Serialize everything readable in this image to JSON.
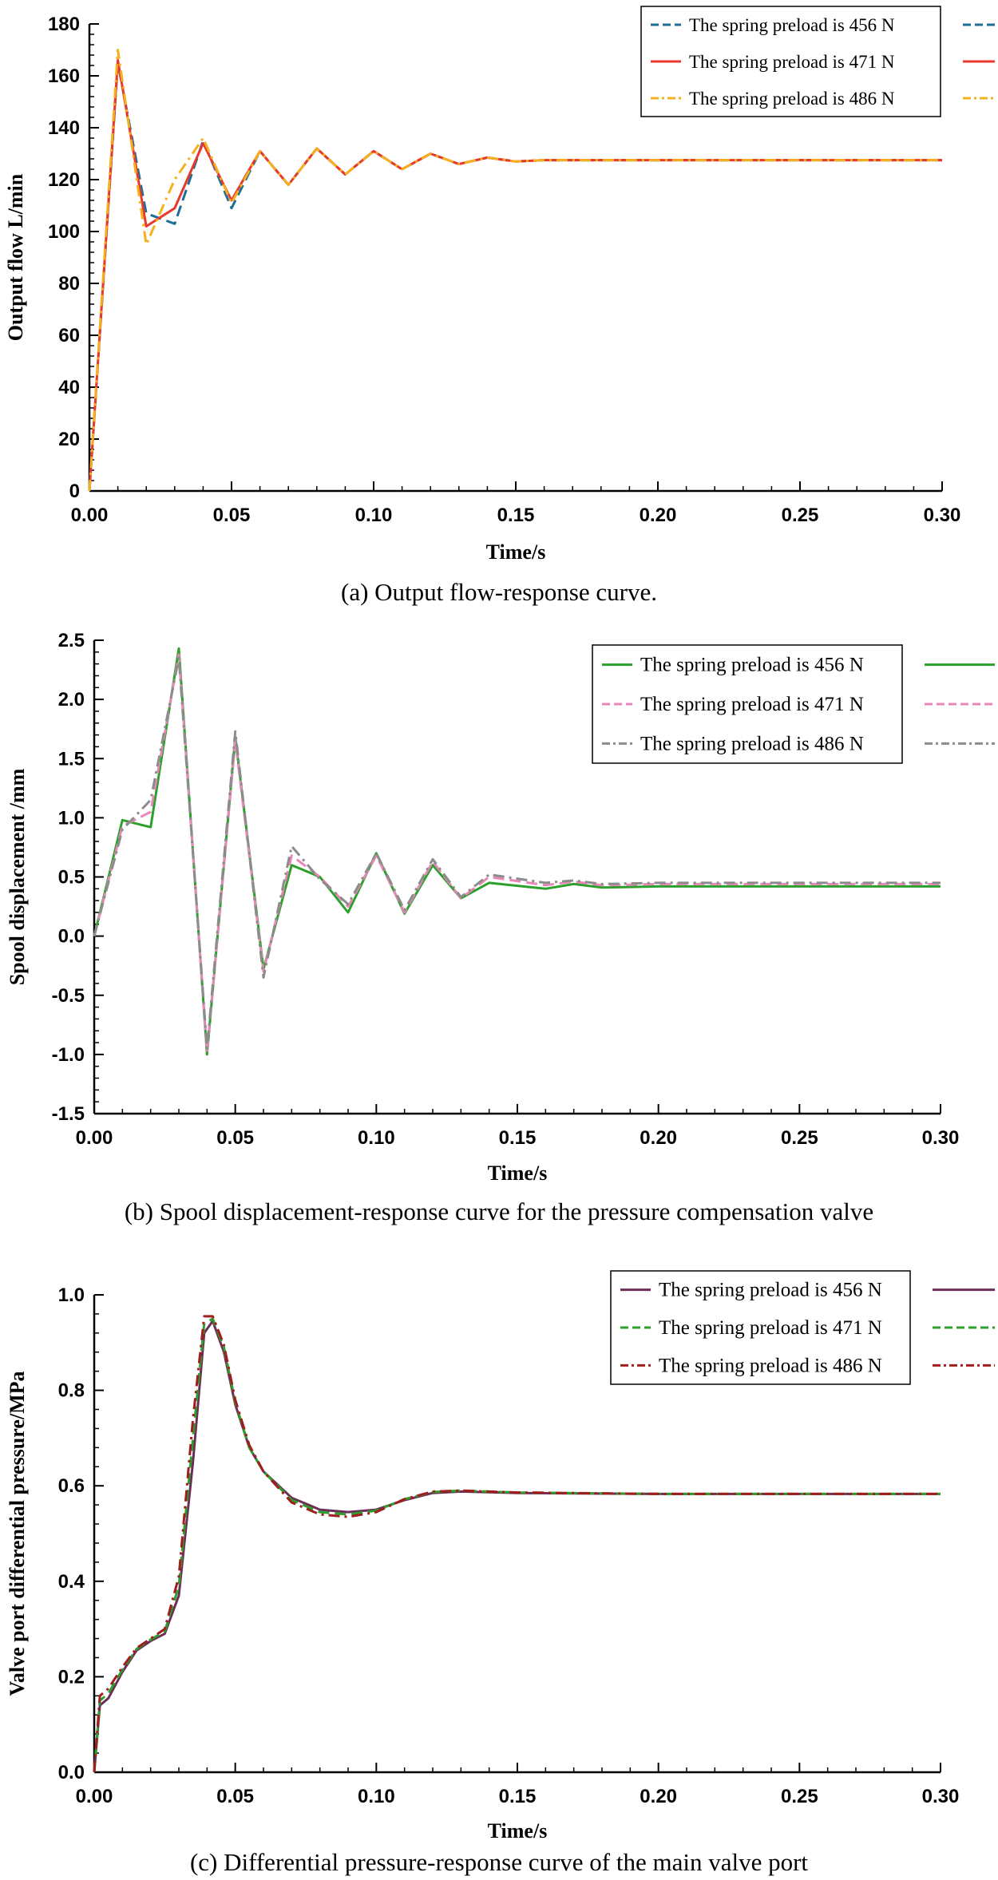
{
  "chart_data": [
    {
      "id": "a",
      "type": "line",
      "caption": "(a) Output flow-response curve.",
      "xlabel": "Time/s",
      "ylabel": "Output flow  L/min",
      "xlim": [
        0,
        0.3
      ],
      "ylim": [
        0,
        180
      ],
      "xticks": [
        0.0,
        0.05,
        0.1,
        0.15,
        0.2,
        0.25,
        0.3
      ],
      "xtick_labels": [
        "0.00",
        "0.05",
        "0.10",
        "0.15",
        "0.20",
        "0.25",
        "0.30"
      ],
      "yticks": [
        0,
        20,
        40,
        60,
        80,
        100,
        120,
        140,
        160,
        180
      ],
      "ytick_labels": [
        "0",
        "20",
        "40",
        "60",
        "80",
        "100",
        "120",
        "140",
        "160",
        "180"
      ],
      "legend_position": "top-right",
      "series": [
        {
          "name": "The spring preload is 456 N",
          "color": "#1f6e96",
          "dash": "dash",
          "x": [
            0,
            0.01,
            0.02,
            0.03,
            0.04,
            0.05,
            0.06,
            0.07,
            0.08,
            0.09,
            0.1,
            0.11,
            0.12,
            0.13,
            0.14,
            0.15,
            0.16,
            0.2,
            0.3
          ],
          "y": [
            0,
            165,
            107,
            103,
            135,
            109,
            131,
            118,
            132,
            122,
            131,
            124,
            130,
            126,
            128.5,
            127,
            127.5,
            127.5,
            127.5
          ]
        },
        {
          "name": "The spring preload is 471 N",
          "color": "#e8392c",
          "dash": "solid",
          "x": [
            0,
            0.01,
            0.02,
            0.03,
            0.04,
            0.05,
            0.06,
            0.07,
            0.08,
            0.09,
            0.1,
            0.11,
            0.12,
            0.13,
            0.14,
            0.15,
            0.16,
            0.2,
            0.3
          ],
          "y": [
            0,
            166,
            102,
            109,
            134,
            112,
            131,
            118,
            132,
            122,
            131,
            124,
            130,
            126,
            128.5,
            127,
            127.5,
            127.5,
            127.5
          ]
        },
        {
          "name": "The spring preload is 486 N",
          "color": "#f5b01e",
          "dash": "dashdot",
          "x": [
            0,
            0.01,
            0.02,
            0.03,
            0.04,
            0.05,
            0.06,
            0.07,
            0.08,
            0.09,
            0.1,
            0.11,
            0.12,
            0.13,
            0.14,
            0.15,
            0.16,
            0.2,
            0.3
          ],
          "y": [
            0,
            170,
            95,
            120,
            136,
            111,
            131,
            118,
            132,
            122,
            131,
            124,
            130,
            126,
            128.5,
            127,
            127.5,
            127.5,
            127.5
          ]
        }
      ]
    },
    {
      "id": "b",
      "type": "line",
      "caption": "(b) Spool displacement-response curve for the pressure compensation valve",
      "xlabel": "Time/s",
      "ylabel": "Spool displacement /mm",
      "xlim": [
        0,
        0.3
      ],
      "ylim": [
        -1.5,
        2.5
      ],
      "xticks": [
        0.0,
        0.05,
        0.1,
        0.15,
        0.2,
        0.25,
        0.3
      ],
      "xtick_labels": [
        "0.00",
        "0.05",
        "0.10",
        "0.15",
        "0.20",
        "0.25",
        "0.30"
      ],
      "yticks": [
        -1.5,
        -1.0,
        -0.5,
        0.0,
        0.5,
        1.0,
        1.5,
        2.0,
        2.5
      ],
      "ytick_labels": [
        "-1.5",
        "-1.0",
        "-0.5",
        "0.0",
        "0.5",
        "1.0",
        "1.5",
        "2.0",
        "2.5"
      ],
      "legend_position": "top-right",
      "series": [
        {
          "name": "The spring preload is 456 N",
          "color": "#2ca02c",
          "dash": "solid",
          "x": [
            0,
            0.01,
            0.02,
            0.03,
            0.04,
            0.05,
            0.06,
            0.07,
            0.08,
            0.09,
            0.1,
            0.11,
            0.12,
            0.13,
            0.14,
            0.16,
            0.17,
            0.18,
            0.2,
            0.3
          ],
          "y": [
            0,
            0.98,
            0.92,
            2.43,
            -1.0,
            1.68,
            -0.28,
            0.6,
            0.5,
            0.2,
            0.7,
            0.19,
            0.6,
            0.32,
            0.45,
            0.4,
            0.44,
            0.41,
            0.42,
            0.42
          ]
        },
        {
          "name": "The spring preload is 471 N",
          "color": "#e887b8",
          "dash": "dash",
          "x": [
            0,
            0.01,
            0.02,
            0.03,
            0.04,
            0.05,
            0.06,
            0.07,
            0.08,
            0.09,
            0.1,
            0.11,
            0.12,
            0.13,
            0.14,
            0.16,
            0.17,
            0.18,
            0.2,
            0.3
          ],
          "y": [
            0,
            0.93,
            1.05,
            2.38,
            -0.98,
            1.65,
            -0.3,
            0.68,
            0.5,
            0.25,
            0.68,
            0.2,
            0.63,
            0.32,
            0.5,
            0.43,
            0.46,
            0.43,
            0.44,
            0.44
          ]
        },
        {
          "name": "The spring preload is 486 N",
          "color": "#8c8c8c",
          "dash": "dashdot",
          "x": [
            0,
            0.01,
            0.02,
            0.03,
            0.04,
            0.05,
            0.06,
            0.07,
            0.08,
            0.09,
            0.1,
            0.11,
            0.12,
            0.13,
            0.14,
            0.16,
            0.17,
            0.18,
            0.2,
            0.3
          ],
          "y": [
            0,
            0.9,
            1.15,
            2.35,
            -0.95,
            1.73,
            -0.35,
            0.76,
            0.48,
            0.27,
            0.7,
            0.22,
            0.65,
            0.33,
            0.52,
            0.45,
            0.47,
            0.44,
            0.45,
            0.45
          ]
        }
      ]
    },
    {
      "id": "c",
      "type": "line",
      "caption": "(c) Differential pressure-response curve of the main valve port",
      "xlabel": "Time/s",
      "ylabel": "Valve port differential pressure/MPa",
      "xlim": [
        0,
        0.3
      ],
      "ylim": [
        0,
        1.0
      ],
      "xticks": [
        0.0,
        0.05,
        0.1,
        0.15,
        0.2,
        0.25,
        0.3
      ],
      "xtick_labels": [
        "0.00",
        "0.05",
        "0.10",
        "0.15",
        "0.20",
        "0.25",
        "0.30"
      ],
      "yticks": [
        0.0,
        0.2,
        0.4,
        0.6,
        0.8,
        1.0
      ],
      "ytick_labels": [
        "0.0",
        "0.2",
        "0.4",
        "0.6",
        "0.8",
        "1.0"
      ],
      "legend_position": "top-right",
      "series": [
        {
          "name": "The spring preload is 456 N",
          "color": "#6b2f57",
          "dash": "solid",
          "x": [
            0,
            0.002,
            0.005,
            0.01,
            0.015,
            0.02,
            0.025,
            0.03,
            0.035,
            0.039,
            0.042,
            0.046,
            0.05,
            0.055,
            0.06,
            0.07,
            0.08,
            0.09,
            0.1,
            0.11,
            0.12,
            0.13,
            0.15,
            0.2,
            0.3
          ],
          "y": [
            0,
            0.14,
            0.155,
            0.21,
            0.255,
            0.275,
            0.29,
            0.37,
            0.65,
            0.92,
            0.945,
            0.88,
            0.77,
            0.68,
            0.63,
            0.575,
            0.55,
            0.545,
            0.55,
            0.57,
            0.585,
            0.588,
            0.585,
            0.583,
            0.583
          ]
        },
        {
          "name": "The spring preload is 471 N",
          "color": "#2ca02c",
          "dash": "dash",
          "x": [
            0,
            0.002,
            0.005,
            0.01,
            0.015,
            0.02,
            0.025,
            0.03,
            0.035,
            0.039,
            0.042,
            0.046,
            0.05,
            0.055,
            0.06,
            0.07,
            0.08,
            0.09,
            0.1,
            0.11,
            0.12,
            0.13,
            0.15,
            0.2,
            0.3
          ],
          "y": [
            0,
            0.15,
            0.165,
            0.215,
            0.258,
            0.278,
            0.295,
            0.39,
            0.7,
            0.94,
            0.95,
            0.89,
            0.775,
            0.68,
            0.63,
            0.57,
            0.545,
            0.54,
            0.548,
            0.572,
            0.587,
            0.59,
            0.586,
            0.583,
            0.583
          ]
        },
        {
          "name": "The spring preload is 486 N",
          "color": "#a01e1e",
          "dash": "dashdot",
          "x": [
            0,
            0.002,
            0.005,
            0.01,
            0.015,
            0.02,
            0.025,
            0.03,
            0.035,
            0.039,
            0.042,
            0.046,
            0.05,
            0.055,
            0.06,
            0.07,
            0.08,
            0.09,
            0.1,
            0.11,
            0.12,
            0.13,
            0.15,
            0.2,
            0.3
          ],
          "y": [
            0,
            0.16,
            0.175,
            0.22,
            0.26,
            0.28,
            0.3,
            0.41,
            0.74,
            0.955,
            0.955,
            0.895,
            0.78,
            0.685,
            0.63,
            0.565,
            0.54,
            0.535,
            0.545,
            0.572,
            0.588,
            0.59,
            0.586,
            0.583,
            0.583
          ]
        }
      ]
    }
  ]
}
